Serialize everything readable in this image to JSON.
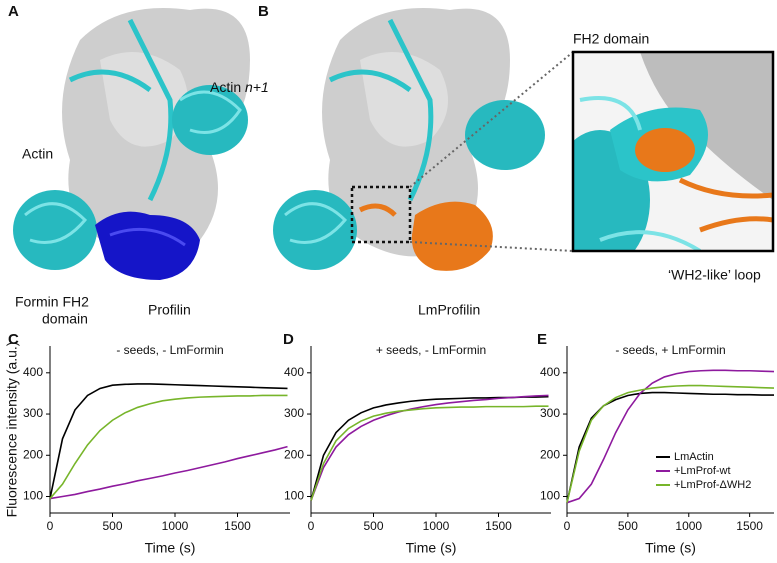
{
  "panels": {
    "a": {
      "label": "A",
      "actin": "Actin",
      "actin_next": [
        "Actin ",
        "n+1"
      ],
      "formin": [
        "Formin FH2",
        "domain"
      ],
      "profilin": "Profilin"
    },
    "b": {
      "label": "B",
      "profilin": "LmProfilin",
      "inset_title": "FH2 domain",
      "inset_loop": "‘WH2-like’ loop"
    }
  },
  "chart_data": [
    {
      "type": "line",
      "panel": "C",
      "title": "- seeds, - LmFormin",
      "xlabel": "Time (s)",
      "ylabel": "Fluorescence intensity (a.u.)",
      "x": [
        0,
        100,
        200,
        300,
        400,
        500,
        600,
        700,
        800,
        900,
        1000,
        1100,
        1200,
        1300,
        1400,
        1500,
        1600,
        1700,
        1800,
        1900
      ],
      "xlim": [
        0,
        1920
      ],
      "ylim": [
        60,
        465
      ],
      "xticks": [
        0,
        500,
        1000,
        1500
      ],
      "yticks": [
        100,
        200,
        300,
        400
      ],
      "series": [
        {
          "name": "LmActin",
          "color": "#000000",
          "values": [
            95,
            240,
            310,
            345,
            362,
            370,
            372,
            373,
            373,
            372,
            371,
            370,
            369,
            368,
            367,
            366,
            365,
            364,
            363,
            362
          ]
        },
        {
          "name": "+LmProf-wt",
          "color": "#8e1a9e",
          "values": [
            95,
            100,
            105,
            112,
            118,
            125,
            131,
            138,
            144,
            150,
            157,
            163,
            170,
            177,
            184,
            192,
            199,
            206,
            213,
            221
          ]
        },
        {
          "name": "+LmProf-ΔWH2",
          "color": "#77b52a",
          "values": [
            95,
            130,
            180,
            225,
            260,
            285,
            303,
            316,
            325,
            332,
            336,
            339,
            341,
            342,
            343,
            344,
            344,
            345,
            345,
            345
          ]
        }
      ]
    },
    {
      "type": "line",
      "panel": "D",
      "title": "+ seeds, - LmFormin",
      "xlabel": "Time (s)",
      "x": [
        0,
        100,
        200,
        300,
        400,
        500,
        600,
        700,
        800,
        900,
        1000,
        1100,
        1200,
        1300,
        1400,
        1500,
        1600,
        1700,
        1800,
        1900
      ],
      "xlim": [
        0,
        1920
      ],
      "ylim": [
        60,
        465
      ],
      "xticks": [
        0,
        500,
        1000,
        1500
      ],
      "yticks": [
        100,
        200,
        300,
        400
      ],
      "series": [
        {
          "name": "LmActin",
          "color": "#000000",
          "values": [
            90,
            200,
            255,
            285,
            303,
            315,
            322,
            327,
            331,
            334,
            336,
            337,
            338,
            339,
            339,
            340,
            340,
            341,
            341,
            342
          ]
        },
        {
          "name": "+LmProf-wt",
          "color": "#8e1a9e",
          "values": [
            90,
            170,
            220,
            250,
            270,
            285,
            296,
            305,
            312,
            318,
            323,
            327,
            330,
            333,
            335,
            338,
            340,
            342,
            344,
            345
          ]
        },
        {
          "name": "+LmProf-ΔWH2",
          "color": "#77b52a",
          "values": [
            90,
            180,
            235,
            265,
            283,
            295,
            302,
            307,
            310,
            313,
            315,
            316,
            317,
            317,
            318,
            318,
            318,
            318,
            319,
            319
          ]
        }
      ]
    },
    {
      "type": "line",
      "panel": "E",
      "title": "- seeds, + LmFormin",
      "xlabel": "Time (s)",
      "legend": "lower right",
      "x": [
        0,
        100,
        200,
        300,
        400,
        500,
        600,
        700,
        800,
        900,
        1000,
        1100,
        1200,
        1300,
        1400,
        1500,
        1600,
        1700
      ],
      "xlim": [
        0,
        1700
      ],
      "ylim": [
        60,
        465
      ],
      "xticks": [
        0,
        500,
        1000,
        1500
      ],
      "yticks": [
        100,
        200,
        300,
        400
      ],
      "series": [
        {
          "name": "LmActin",
          "color": "#000000",
          "values": [
            85,
            220,
            290,
            320,
            335,
            345,
            350,
            352,
            352,
            351,
            350,
            349,
            348,
            348,
            347,
            347,
            346,
            346
          ]
        },
        {
          "name": "+LmProf-wt",
          "color": "#8e1a9e",
          "values": [
            85,
            95,
            130,
            190,
            255,
            310,
            350,
            375,
            390,
            398,
            403,
            405,
            406,
            406,
            405,
            405,
            404,
            403
          ]
        },
        {
          "name": "+LmProf-ΔWH2",
          "color": "#77b52a",
          "values": [
            85,
            210,
            285,
            320,
            340,
            352,
            358,
            363,
            366,
            368,
            369,
            369,
            368,
            367,
            366,
            365,
            364,
            363
          ]
        }
      ]
    }
  ]
}
